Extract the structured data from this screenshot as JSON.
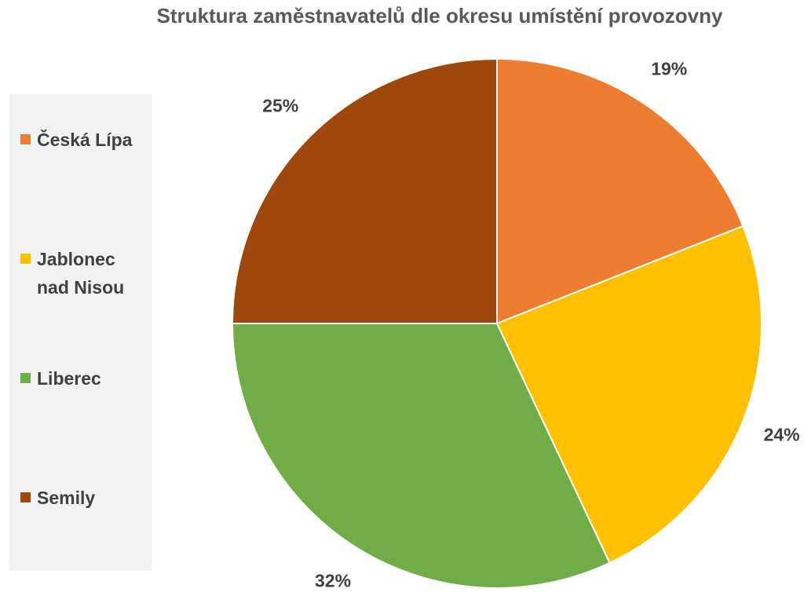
{
  "chart_data": {
    "type": "pie",
    "title": "Struktura zaměstnavatelů dle okresu umístění provozovny",
    "categories": [
      "Česká Lípa",
      "Jablonec nad Nisou",
      "Liberec",
      "Semily"
    ],
    "values": [
      19,
      24,
      32,
      25
    ],
    "value_labels": [
      "19%",
      "24%",
      "32%",
      "25%"
    ],
    "colors": [
      "#ed7d31",
      "#ffc000",
      "#70ad47",
      "#9e480e"
    ],
    "legend": "left"
  }
}
